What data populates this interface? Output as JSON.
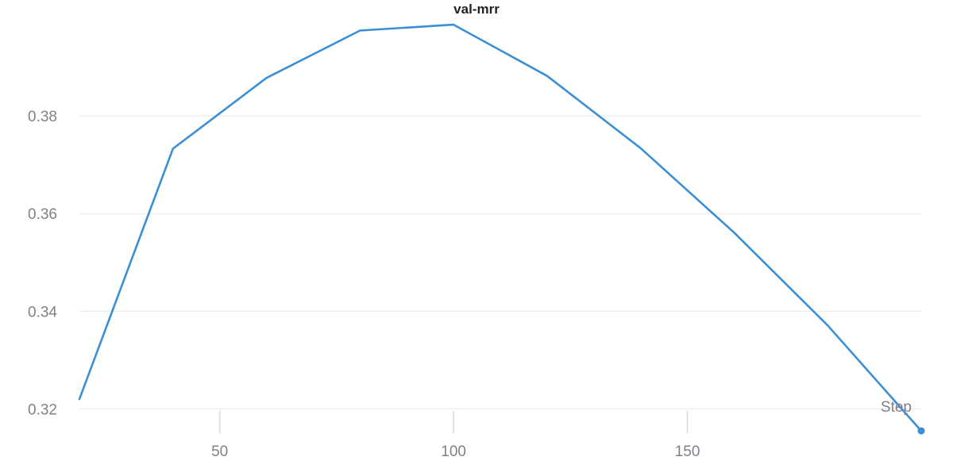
{
  "chart_data": {
    "type": "line",
    "title": "val-mrr",
    "xlabel": "Step",
    "ylabel": "",
    "xlim": [
      20,
      200
    ],
    "ylim": [
      0.316,
      0.4005
    ],
    "xticks": [
      50,
      100,
      150
    ],
    "yticks": [
      0.32,
      0.34,
      0.36,
      0.38
    ],
    "grid": true,
    "series": [
      {
        "x": [
          20,
          40,
          60,
          80,
          100,
          120,
          140,
          160,
          180,
          200
        ],
        "y": [
          0.322,
          0.3733,
          0.3878,
          0.3975,
          0.3987,
          0.3882,
          0.3734,
          0.3561,
          0.3371,
          0.3155
        ]
      }
    ],
    "colors": {
      "line": "#3b8fd4",
      "grid": "#e8e8e8",
      "tick_text": "#808088"
    }
  }
}
